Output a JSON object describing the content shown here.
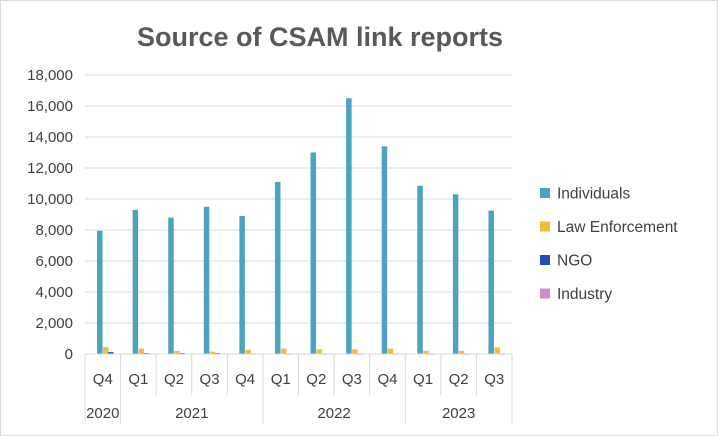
{
  "chart_data": {
    "type": "bar",
    "title": "Source of CSAM link reports",
    "xlabel": "",
    "ylabel": "",
    "ylim": [
      0,
      18000
    ],
    "yticks": [
      "0",
      "2,000",
      "4,000",
      "6,000",
      "8,000",
      "10,000",
      "12,000",
      "14,000",
      "16,000",
      "18,000"
    ],
    "grid": true,
    "legend_position": "right",
    "categories": [
      "Q4",
      "Q1",
      "Q2",
      "Q3",
      "Q4",
      "Q1",
      "Q2",
      "Q3",
      "Q4",
      "Q1",
      "Q2",
      "Q3"
    ],
    "year_groups": [
      {
        "label": "2020",
        "count": 1
      },
      {
        "label": "2021",
        "count": 4
      },
      {
        "label": "2022",
        "count": 4
      },
      {
        "label": "2023",
        "count": 3
      }
    ],
    "series": [
      {
        "name": "Individuals",
        "color": "#4aa3c0",
        "values": [
          7950,
          9300,
          8800,
          9500,
          8900,
          11100,
          13000,
          16500,
          13400,
          10850,
          10300,
          9250
        ]
      },
      {
        "name": "Law Enforcement",
        "color": "#f0bf3a",
        "values": [
          450,
          350,
          200,
          150,
          280,
          350,
          300,
          300,
          350,
          200,
          200,
          420
        ]
      },
      {
        "name": "NGO",
        "color": "#1f4fb3",
        "values": [
          120,
          60,
          60,
          60,
          40,
          10,
          10,
          10,
          10,
          10,
          10,
          10
        ]
      },
      {
        "name": "Industry",
        "color": "#c98fc6",
        "values": [
          0,
          0,
          0,
          0,
          0,
          0,
          0,
          0,
          0,
          0,
          0,
          0
        ]
      }
    ]
  }
}
